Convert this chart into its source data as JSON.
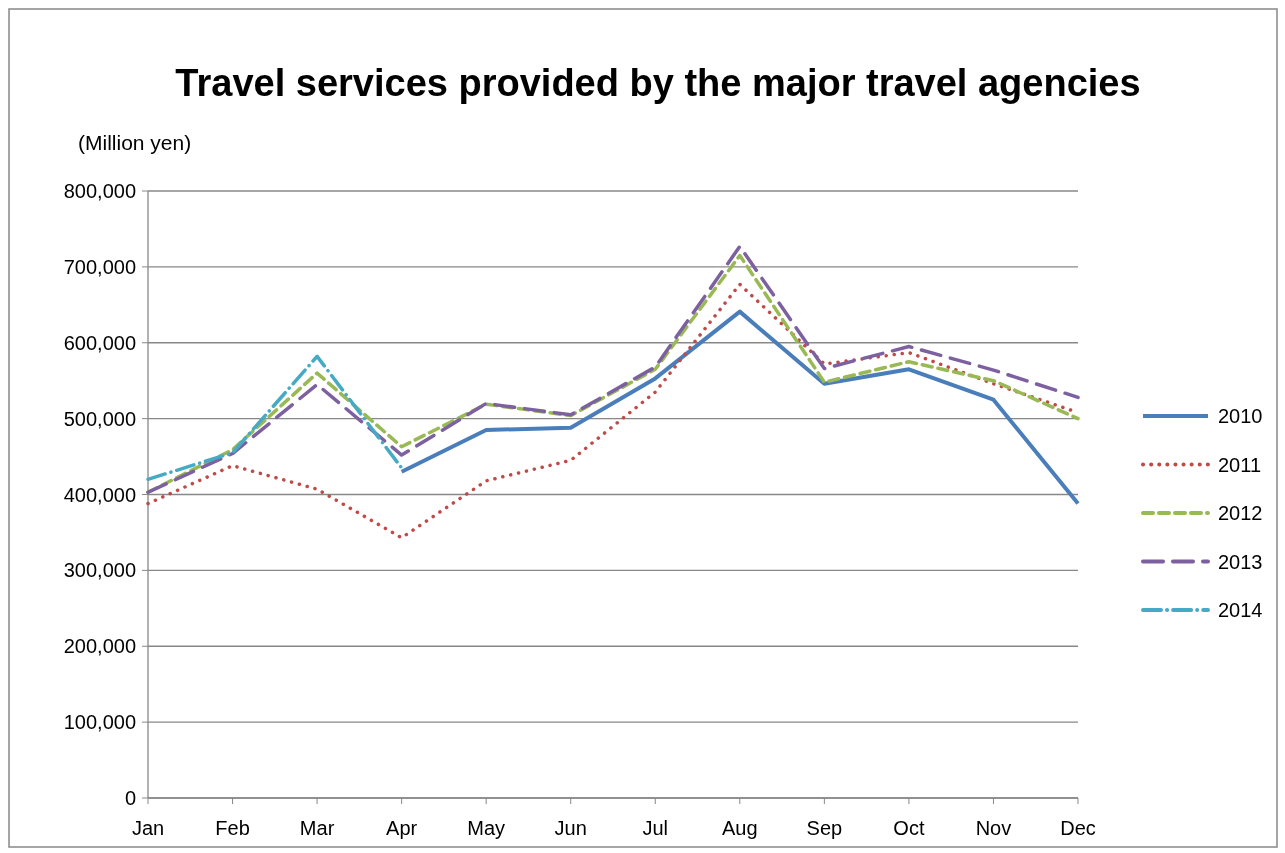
{
  "chart_data": {
    "type": "line",
    "title": "Travel services provided by the major travel agencies",
    "ylabel": "(Million yen)",
    "categories": [
      "Jan",
      "Feb",
      "Mar",
      "Apr",
      "May",
      "Jun",
      "Jul",
      "Aug",
      "Sep",
      "Oct",
      "Nov",
      "Dec"
    ],
    "series": [
      {
        "name": "2010",
        "color": "#4a7ebb",
        "line_style": "solid",
        "values": [
          null,
          null,
          null,
          430000,
          485000,
          488000,
          553000,
          641000,
          546000,
          565000,
          525000,
          388000
        ]
      },
      {
        "name": "2011",
        "color": "#be4b48",
        "line_style": "dotted",
        "values": [
          388000,
          438000,
          407000,
          343000,
          418000,
          445000,
          535000,
          677000,
          572000,
          587000,
          546000,
          508000
        ]
      },
      {
        "name": "2012",
        "color": "#98b954",
        "line_style": "dashed",
        "values": [
          403000,
          459000,
          560000,
          463000,
          519000,
          504000,
          565000,
          715000,
          548000,
          575000,
          550000,
          500000
        ]
      },
      {
        "name": "2013",
        "color": "#7d60a0",
        "line_style": "longdash",
        "values": [
          403000,
          454000,
          545000,
          452000,
          520000,
          505000,
          568000,
          727000,
          566000,
          595000,
          564000,
          528000
        ]
      },
      {
        "name": "2014",
        "color": "#46aac5",
        "line_style": "dashdot",
        "values": [
          420000,
          455000,
          582000,
          435000,
          null,
          null,
          null,
          null,
          null,
          null,
          null,
          null
        ]
      }
    ],
    "ylim": [
      0,
      800000
    ],
    "yticks": [
      {
        "value": 0,
        "label": "0"
      },
      {
        "value": 100000,
        "label": "100,000"
      },
      {
        "value": 200000,
        "label": "200,000"
      },
      {
        "value": 300000,
        "label": "300,000"
      },
      {
        "value": 400000,
        "label": "400,000"
      },
      {
        "value": 500000,
        "label": "500,000"
      },
      {
        "value": 600000,
        "label": "600,000"
      },
      {
        "value": 700000,
        "label": "700,000"
      },
      {
        "value": 800000,
        "label": "800,000"
      }
    ],
    "grid": "y",
    "legend": "right",
    "marker": "none"
  }
}
